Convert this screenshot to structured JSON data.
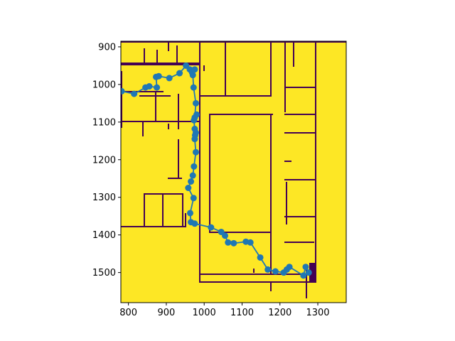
{
  "chart_data": {
    "type": "line",
    "title": "",
    "xlabel": "",
    "ylabel": "",
    "xlim": [
      780,
      1375
    ],
    "ylim": [
      1580,
      885
    ],
    "y_inverted": true,
    "grid": false,
    "legend": "none",
    "x_ticks": [
      800,
      900,
      1000,
      1100,
      1200,
      1300
    ],
    "y_ticks": [
      900,
      1000,
      1100,
      1200,
      1300,
      1400,
      1500
    ],
    "x_tick_labels": [
      "800",
      "900",
      "1000",
      "1100",
      "1200",
      "1300"
    ],
    "y_tick_labels": [
      "900",
      "1000",
      "1100",
      "1200",
      "1300",
      "1400",
      "1500"
    ],
    "background_image": "occupancy-grid-floorplan",
    "colors": {
      "free_space": "#fde725",
      "wall": "#440154",
      "path": "#1f77b4"
    },
    "series": [
      {
        "x": [
          782,
          815,
          845,
          855,
          875,
          873,
          880,
          908,
          935,
          952,
          962,
          968,
          975,
          970,
          972,
          978,
          975,
          980,
          973,
          975,
          978,
          976,
          975,
          978,
          973,
          970,
          965,
          958,
          972,
          963,
          965,
          975,
          1018,
          1045,
          1055,
          1063,
          1078,
          1110,
          1122,
          1148,
          1168,
          1188,
          1210,
          1218,
          1225,
          1262,
          1268,
          1276
        ],
        "y": [
          1018,
          1025,
          1008,
          1005,
          1008,
          980,
          978,
          983,
          970,
          950,
          960,
          968,
          960,
          975,
          1008,
          1050,
          1088,
          1080,
          1095,
          1118,
          1128,
          1135,
          1145,
          1180,
          1218,
          1242,
          1258,
          1275,
          1302,
          1342,
          1366,
          1370,
          1380,
          1392,
          1402,
          1420,
          1422,
          1418,
          1420,
          1460,
          1492,
          1497,
          1500,
          1492,
          1485,
          1508,
          1485,
          1500
        ]
      }
    ]
  }
}
